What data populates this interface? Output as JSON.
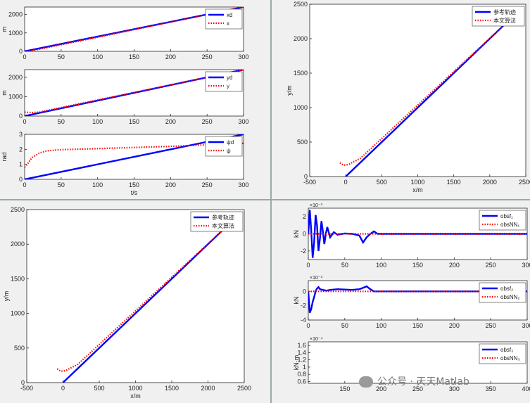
{
  "colors": {
    "ref": "#0000ff",
    "est": "#ff0000",
    "axis": "#262626",
    "grid_bg": "#ffffff",
    "bg": "#f0f0f0"
  },
  "watermark": "公众号 · 天天Matlab",
  "chart_data": [
    {
      "type": "line",
      "ylabel": "m",
      "xlim": [
        0,
        300
      ],
      "ylim": [
        0,
        2400
      ],
      "xticks": [
        0,
        50,
        100,
        150,
        200,
        250,
        300
      ],
      "yticks": [
        0,
        1000,
        2000
      ],
      "legend": "top-right",
      "series": [
        {
          "name": "xd",
          "style": "solid",
          "color": "#0000ff",
          "x": [
            0,
            300
          ],
          "y": [
            0,
            2400
          ]
        },
        {
          "name": "x",
          "style": "dotted",
          "color": "#ff0000",
          "x": [
            0,
            300
          ],
          "y": [
            -50,
            2400
          ]
        }
      ]
    },
    {
      "type": "line",
      "ylabel": "m",
      "xlim": [
        0,
        300
      ],
      "ylim": [
        0,
        2400
      ],
      "xticks": [
        0,
        50,
        100,
        150,
        200,
        250,
        300
      ],
      "yticks": [
        0,
        1000,
        2000
      ],
      "legend": "top-right",
      "series": [
        {
          "name": "yd",
          "style": "solid",
          "color": "#0000ff",
          "x": [
            0,
            300
          ],
          "y": [
            0,
            2400
          ]
        },
        {
          "name": "y",
          "style": "dotted",
          "color": "#ff0000",
          "x": [
            0,
            5,
            10,
            20,
            300
          ],
          "y": [
            200,
            190,
            180,
            200,
            2400
          ]
        }
      ]
    },
    {
      "type": "line",
      "ylabel": "rad",
      "xlabel": "t/s",
      "xlim": [
        0,
        300
      ],
      "ylim": [
        0,
        3
      ],
      "xticks": [
        0,
        50,
        100,
        150,
        200,
        250,
        300
      ],
      "yticks": [
        0,
        1,
        2,
        3
      ],
      "legend": "top-right",
      "series": [
        {
          "name": "ψd",
          "style": "solid",
          "color": "#0000ff",
          "x": [
            0,
            300
          ],
          "y": [
            0,
            3
          ]
        },
        {
          "name": "ψ",
          "style": "dotted",
          "color": "#ff0000",
          "x": [
            0,
            5,
            10,
            20,
            30,
            50,
            100,
            200,
            300
          ],
          "y": [
            0.8,
            1.1,
            1.45,
            1.75,
            1.9,
            1.98,
            2.05,
            2.2,
            2.4
          ]
        }
      ]
    },
    {
      "type": "line",
      "ylabel": "y/m",
      "xlabel": "x/m",
      "xlim": [
        -500,
        2500
      ],
      "ylim": [
        0,
        2500
      ],
      "xticks": [
        -500,
        0,
        500,
        1000,
        1500,
        2000,
        2500
      ],
      "yticks": [
        0,
        500,
        1000,
        1500,
        2000,
        2500
      ],
      "legend": "top-right",
      "series": [
        {
          "name": "参考轨迹",
          "style": "solid",
          "color": "#0000ff",
          "x": [
            0,
            2200
          ],
          "y": [
            0,
            2200
          ]
        },
        {
          "name": "本文算法",
          "style": "dotted",
          "color": "#ff0000",
          "x": [
            -80,
            -40,
            0,
            50,
            120,
            200,
            2200
          ],
          "y": [
            200,
            170,
            165,
            180,
            220,
            260,
            2200
          ]
        }
      ]
    },
    {
      "type": "line",
      "ylabel": "y/m",
      "xlabel": "x/m",
      "xlim": [
        -500,
        2500
      ],
      "ylim": [
        0,
        2500
      ],
      "xticks": [
        -500,
        0,
        500,
        1000,
        1500,
        2000,
        2500
      ],
      "yticks": [
        0,
        500,
        1000,
        1500,
        2000,
        2500
      ],
      "legend": "top-right",
      "series": [
        {
          "name": "参考轨迹",
          "style": "solid",
          "color": "#0000ff",
          "x": [
            0,
            2200
          ],
          "y": [
            0,
            2200
          ]
        },
        {
          "name": "本文算法",
          "style": "dotted",
          "color": "#ff0000",
          "x": [
            -80,
            -40,
            0,
            50,
            120,
            200,
            2200
          ],
          "y": [
            200,
            170,
            165,
            180,
            220,
            260,
            2200
          ]
        }
      ]
    },
    {
      "type": "line",
      "ylabel": "kN",
      "exponent": "×10⁻³",
      "xlim": [
        0,
        300
      ],
      "ylim": [
        -3,
        3
      ],
      "xticks": [
        0,
        50,
        100,
        150,
        200,
        250,
        300
      ],
      "yticks": [
        -2,
        0,
        2
      ],
      "legend": "top-right",
      "series": [
        {
          "name": "obsf₁",
          "style": "solid",
          "color": "#0000ff",
          "x": [
            0,
            2,
            4,
            6,
            8,
            10,
            12,
            14,
            16,
            18,
            20,
            22,
            24,
            26,
            28,
            30,
            35,
            40,
            50,
            60,
            70,
            75,
            80,
            85,
            90,
            95,
            300
          ],
          "y": [
            0,
            2.8,
            0.5,
            -2.8,
            -1,
            2.2,
            1,
            -2,
            -0.5,
            1.5,
            0.3,
            -1.2,
            0,
            0.8,
            0.2,
            -0.4,
            0.2,
            -0.1,
            0.05,
            0,
            -0.2,
            -1,
            -0.4,
            0,
            0.3,
            0,
            0
          ]
        },
        {
          "name": "obsNN₁",
          "style": "dotted",
          "color": "#ff0000",
          "x": [
            0,
            300
          ],
          "y": [
            0,
            0
          ]
        }
      ]
    },
    {
      "type": "line",
      "ylabel": "kN",
      "exponent": "×10⁻³",
      "xlim": [
        0,
        300
      ],
      "ylim": [
        -4,
        1.5
      ],
      "xticks": [
        0,
        50,
        100,
        150,
        200,
        250,
        300
      ],
      "yticks": [
        -4,
        -2,
        0
      ],
      "legend": "top-right",
      "series": [
        {
          "name": "obsf₂",
          "style": "solid",
          "color": "#0000ff",
          "x": [
            0,
            2,
            4,
            6,
            8,
            10,
            12,
            14,
            16,
            20,
            25,
            30,
            40,
            60,
            70,
            75,
            80,
            85,
            90,
            95,
            300
          ],
          "y": [
            0,
            -3,
            -2.5,
            -1.5,
            -0.8,
            0,
            0.4,
            0.6,
            0.3,
            0.2,
            0.1,
            0.2,
            0.3,
            0.2,
            0.3,
            0.5,
            0.7,
            0.3,
            0,
            0,
            0
          ]
        },
        {
          "name": "obsNN₂",
          "style": "dotted",
          "color": "#ff0000",
          "x": [
            0,
            300
          ],
          "y": [
            0,
            0
          ]
        }
      ]
    },
    {
      "type": "line",
      "ylabel": "kN·m",
      "exponent": "×10⁻⁴",
      "xlim": [
        100,
        400
      ],
      "ylim": [
        0.55,
        1.7
      ],
      "xticks": [
        150,
        200,
        250,
        300,
        350,
        400
      ],
      "yticks": [
        0.6,
        0.8,
        1.0,
        1.2,
        1.4,
        1.6
      ],
      "legend": "top-right",
      "series": [
        {
          "name": "obsf₃",
          "style": "solid",
          "color": "#0000ff",
          "x": [],
          "y": []
        },
        {
          "name": "obsNN₃",
          "style": "dotted",
          "color": "#ff0000",
          "x": [],
          "y": []
        }
      ]
    }
  ]
}
